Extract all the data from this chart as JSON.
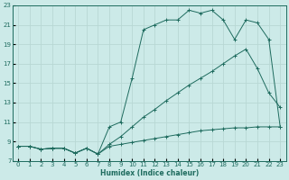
{
  "xlabel": "Humidex (Indice chaleur)",
  "bg_color": "#cceae8",
  "grid_color": "#b8d8d4",
  "line_color": "#1e6b5e",
  "xlim": [
    -0.5,
    23.5
  ],
  "ylim": [
    7,
    23
  ],
  "xticks": [
    0,
    1,
    2,
    3,
    4,
    5,
    6,
    7,
    8,
    9,
    10,
    11,
    12,
    13,
    14,
    15,
    16,
    17,
    18,
    19,
    20,
    21,
    22,
    23
  ],
  "yticks": [
    7,
    9,
    11,
    13,
    15,
    17,
    19,
    21,
    23
  ],
  "line1_x": [
    0,
    1,
    2,
    3,
    4,
    5,
    6,
    7,
    8,
    9,
    10,
    11,
    12,
    13,
    14,
    15,
    16,
    17,
    18,
    19,
    20,
    21,
    22,
    23
  ],
  "line1_y": [
    8.5,
    8.5,
    8.2,
    8.3,
    8.3,
    7.8,
    8.3,
    7.7,
    8.5,
    8.7,
    8.9,
    9.1,
    9.3,
    9.5,
    9.7,
    9.9,
    10.1,
    10.2,
    10.3,
    10.4,
    10.4,
    10.5,
    10.5,
    10.5
  ],
  "line2_x": [
    0,
    1,
    2,
    3,
    4,
    5,
    6,
    7,
    8,
    9,
    10,
    11,
    12,
    13,
    14,
    15,
    16,
    17,
    18,
    19,
    20,
    21,
    22,
    23
  ],
  "line2_y": [
    8.5,
    8.5,
    8.2,
    8.3,
    8.3,
    7.8,
    8.3,
    7.7,
    8.7,
    9.5,
    10.5,
    11.5,
    12.3,
    13.2,
    14.0,
    14.8,
    15.5,
    16.2,
    17.0,
    17.8,
    18.5,
    16.5,
    14.0,
    12.5
  ],
  "line3_x": [
    0,
    1,
    2,
    3,
    4,
    5,
    6,
    7,
    8,
    9,
    10,
    11,
    12,
    13,
    14,
    15,
    16,
    17,
    18,
    19,
    20,
    21,
    22,
    23
  ],
  "line3_y": [
    8.5,
    8.5,
    8.2,
    8.3,
    8.3,
    7.8,
    8.3,
    7.7,
    10.5,
    11.0,
    15.5,
    20.5,
    21.0,
    21.5,
    21.5,
    22.5,
    22.2,
    22.5,
    21.5,
    19.5,
    21.5,
    21.2,
    19.5,
    10.5
  ]
}
